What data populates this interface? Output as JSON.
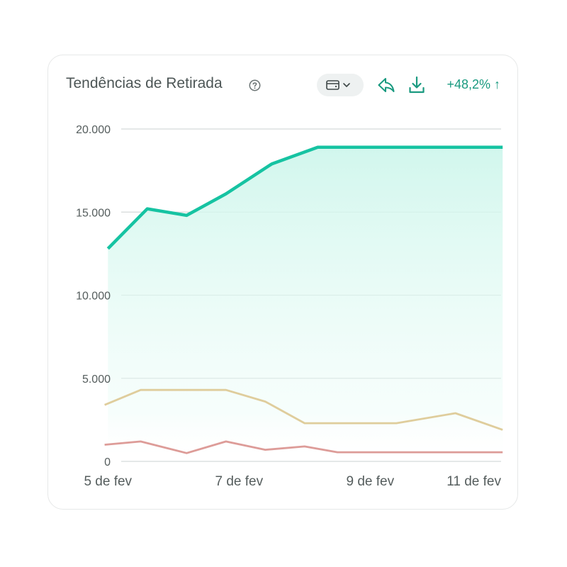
{
  "card": {
    "title": "Tendências de Retirada",
    "change_label": "+48,2% ↑"
  },
  "colors": {
    "accent": "#16c3a2",
    "change_text": "#1a9a80",
    "series_2": "#dfcd9c",
    "series_3": "#dd9c98",
    "grid": "#d5d9d9"
  },
  "icons": {
    "help": "question-circle-icon",
    "wallet": "wallet-icon",
    "dropdown": "chevron-down-icon",
    "share": "share-icon",
    "download": "download-icon"
  },
  "chart_data": {
    "type": "line",
    "title": "Tendências de Retirada",
    "xlabel": "",
    "ylabel": "",
    "x": [
      4.95,
      5.5,
      6,
      6.5,
      7,
      7.5,
      8,
      8.5,
      9,
      9.5,
      10,
      10.5,
      11,
      11.02
    ],
    "x_ticks": [
      {
        "value": 5,
        "label": "5 de fev"
      },
      {
        "value": 7,
        "label": "7 de fev"
      },
      {
        "value": 9,
        "label": "9 de fev"
      },
      {
        "value": 11,
        "label": "11 de fev"
      }
    ],
    "xlim": [
      4.9,
      11.05
    ],
    "ylim": [
      0,
      20000
    ],
    "y_ticks": [
      {
        "value": 0,
        "label": "0"
      },
      {
        "value": 5000,
        "label": "5.000"
      },
      {
        "value": 10000,
        "label": "10.000"
      },
      {
        "value": 15000,
        "label": "15.000"
      },
      {
        "value": 20000,
        "label": "20.000"
      }
    ],
    "grid": true,
    "series": [
      {
        "color": "#16c3a2",
        "area": true,
        "x": [
          5.0,
          5.6,
          6.2,
          6.8,
          7.5,
          8.2,
          8.9,
          9.6,
          10.3,
          11.02
        ],
        "values": [
          12800,
          15200,
          14800,
          16100,
          17900,
          18900,
          18900,
          18900,
          18900,
          18900
        ]
      },
      {
        "color": "#dfcd9c",
        "area": false,
        "x": [
          4.95,
          5.5,
          6.2,
          6.8,
          7.4,
          8.0,
          8.5,
          9.4,
          10.3,
          11.02
        ],
        "values": [
          3400,
          4300,
          4300,
          4300,
          3600,
          2300,
          2300,
          2300,
          2900,
          1900
        ]
      },
      {
        "color": "#dd9c98",
        "area": false,
        "x": [
          4.95,
          5.5,
          6.2,
          6.8,
          7.4,
          8.0,
          8.5,
          9.4,
          10.3,
          11.02
        ],
        "values": [
          1000,
          1200,
          500,
          1200,
          700,
          900,
          550,
          550,
          550,
          550
        ]
      }
    ]
  }
}
